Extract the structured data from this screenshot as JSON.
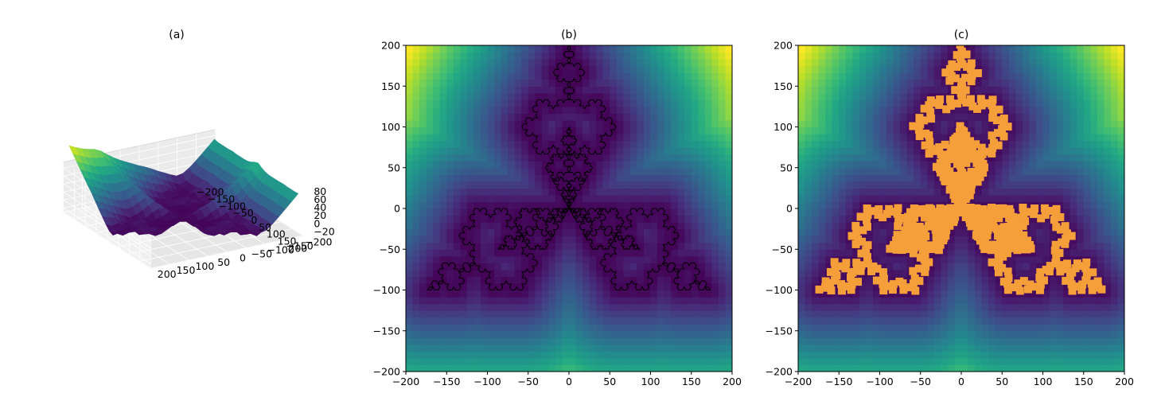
{
  "chart_data": [
    {
      "type": "surface",
      "title": "(a)",
      "x_ticks": [
        -200,
        -150,
        -100,
        -50,
        0,
        50,
        100,
        150,
        200
      ],
      "y_ticks": [
        -200,
        -150,
        -100,
        -50,
        0,
        50,
        100,
        150,
        200
      ],
      "z_ticks": [
        -20,
        0,
        20,
        40,
        60,
        80
      ],
      "xlim": [
        -200,
        200
      ],
      "ylim": [
        -200,
        200
      ],
      "zlim": [
        -30,
        95
      ],
      "colormap": "viridis",
      "grid": true
    },
    {
      "type": "heatmap",
      "title": "(b)",
      "x_ticks": [
        -200,
        -150,
        -100,
        -50,
        0,
        50,
        100,
        150,
        200
      ],
      "y_ticks": [
        -200,
        -150,
        -100,
        -50,
        0,
        50,
        100,
        150,
        200
      ],
      "xlim": [
        -200,
        200
      ],
      "ylim": [
        -200,
        200
      ],
      "colormap": "viridis",
      "overlay": {
        "shape": "koch-snowflake-boundary",
        "color": "#000000",
        "outer_radius": 200,
        "inner_radius": 100,
        "rotation_deg": 90
      }
    },
    {
      "type": "heatmap",
      "title": "(c)",
      "x_ticks": [
        -200,
        -150,
        -100,
        -50,
        0,
        50,
        100,
        150,
        200
      ],
      "y_ticks": [
        -200,
        -150,
        -100,
        -50,
        0,
        50,
        100,
        150,
        200
      ],
      "xlim": [
        -200,
        200
      ],
      "ylim": [
        -200,
        200
      ],
      "colormap": "viridis",
      "overlay": {
        "shape": "sampled-points-on-boundary",
        "color": "#f59f3a",
        "marker": "square"
      }
    }
  ]
}
